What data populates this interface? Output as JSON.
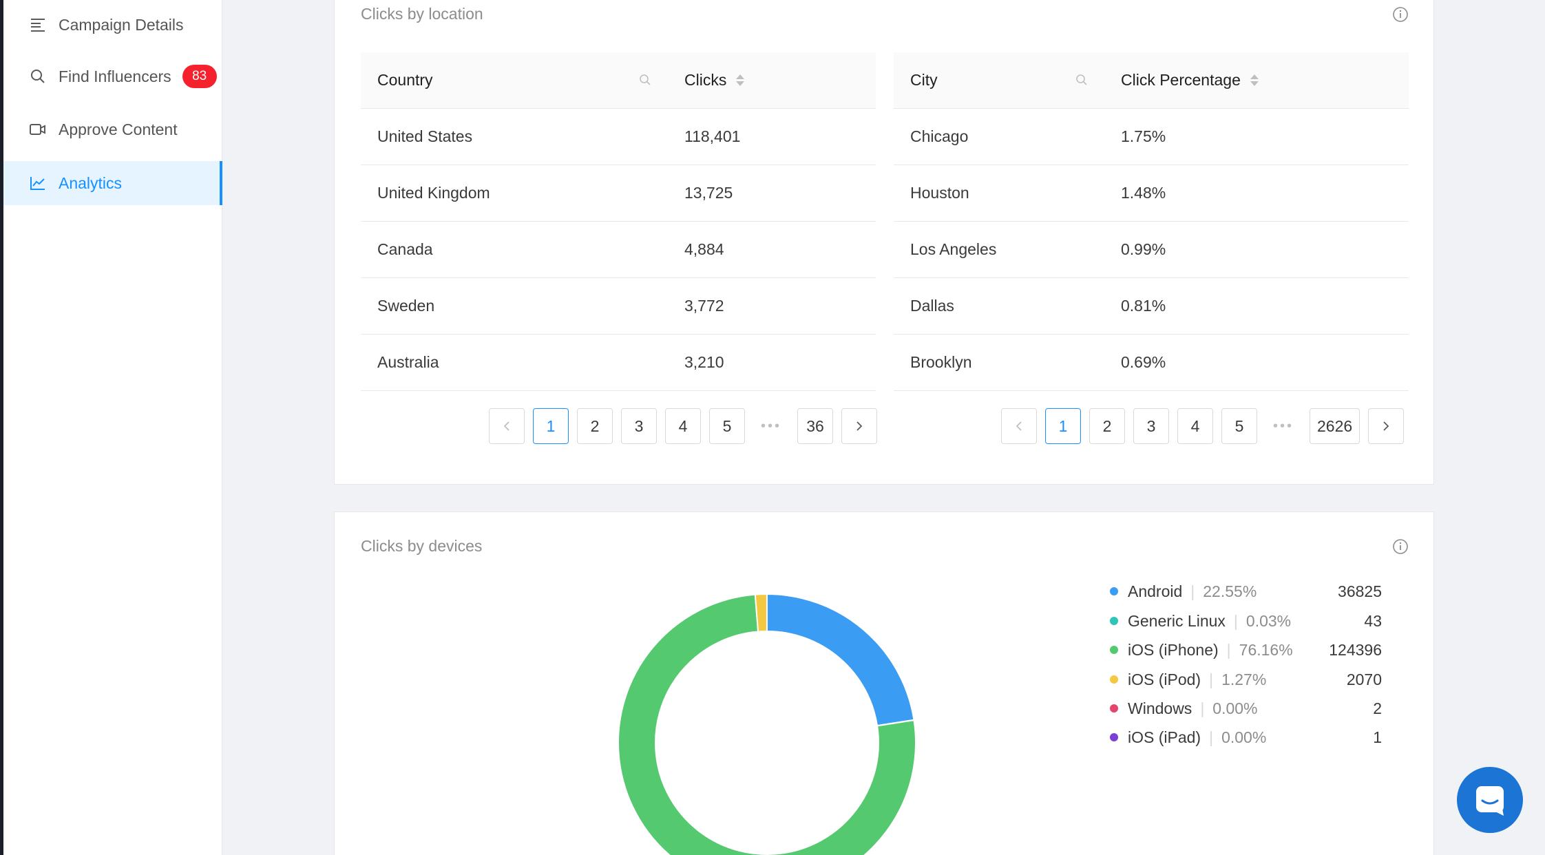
{
  "sidebar": {
    "items": [
      {
        "label": "Campaign Details",
        "icon": "list-icon"
      },
      {
        "label": "Find Influencers",
        "icon": "search-icon",
        "badge": "83"
      },
      {
        "label": "Approve Content",
        "icon": "video-icon"
      },
      {
        "label": "Analytics",
        "icon": "line-chart-icon",
        "active": true
      }
    ]
  },
  "location_card": {
    "title": "Clicks by location",
    "country_table": {
      "headers": [
        "Country",
        "Clicks"
      ],
      "rows": [
        [
          "United States",
          "118,401"
        ],
        [
          "United Kingdom",
          "13,725"
        ],
        [
          "Canada",
          "4,884"
        ],
        [
          "Sweden",
          "3,772"
        ],
        [
          "Australia",
          "3,210"
        ]
      ],
      "pagination": {
        "pages": [
          "1",
          "2",
          "3",
          "4",
          "5"
        ],
        "ellipsis": "•••",
        "last": "36",
        "current": "1"
      }
    },
    "city_table": {
      "headers": [
        "City",
        "Click Percentage"
      ],
      "rows": [
        [
          "Chicago",
          "1.75%"
        ],
        [
          "Houston",
          "1.48%"
        ],
        [
          "Los Angeles",
          "0.99%"
        ],
        [
          "Dallas",
          "0.81%"
        ],
        [
          "Brooklyn",
          "0.69%"
        ]
      ],
      "pagination": {
        "pages": [
          "1",
          "2",
          "3",
          "4",
          "5"
        ],
        "ellipsis": "•••",
        "last": "2626",
        "current": "1"
      }
    }
  },
  "devices_card": {
    "title": "Clicks by devices"
  },
  "chart_data": {
    "type": "pie",
    "donut": true,
    "title": "",
    "series": [
      {
        "name": "Android",
        "percent": "22.55%",
        "value": 36825,
        "color": "#3a9cf2"
      },
      {
        "name": "Generic Linux",
        "percent": "0.03%",
        "value": 43,
        "color": "#2ec4b6"
      },
      {
        "name": "iOS (iPhone)",
        "percent": "76.16%",
        "value": 124396,
        "color": "#55c96f"
      },
      {
        "name": "iOS (iPod)",
        "percent": "1.27%",
        "value": 2070,
        "color": "#f5c842"
      },
      {
        "name": "Windows",
        "percent": "0.00%",
        "value": 2,
        "color": "#e5446d"
      },
      {
        "name": "iOS (iPad)",
        "percent": "0.00%",
        "value": 1,
        "color": "#7b3fd6"
      }
    ]
  },
  "colors": {
    "accent": "#1890ff",
    "badge": "#f5222d",
    "chat": "#1c74d4"
  }
}
